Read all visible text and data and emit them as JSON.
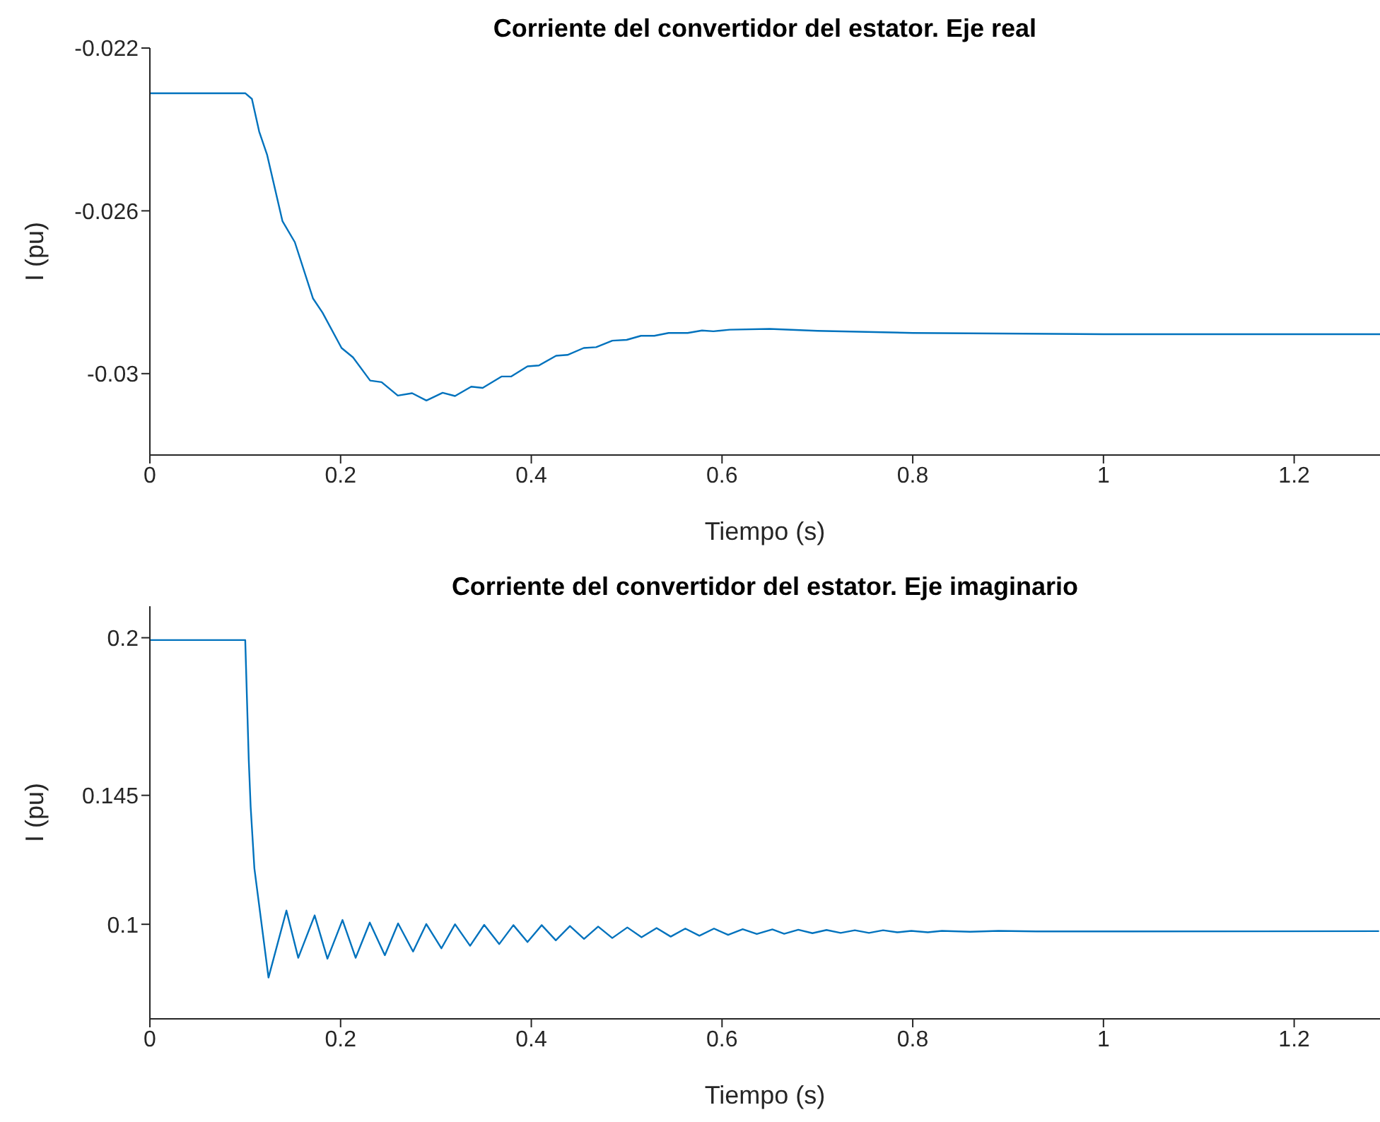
{
  "chart_data": [
    {
      "type": "line",
      "title": "Corriente del convertidor del estator. Eje real",
      "xlabel": "Tiempo (s)",
      "ylabel": "I (pu)",
      "xlim": [
        0,
        1.29
      ],
      "xticks": [
        0,
        0.2,
        0.4,
        0.6,
        0.8,
        1,
        1.2
      ],
      "ylim": [
        -0.032,
        -0.022
      ],
      "yticks": [
        -0.022,
        -0.026,
        -0.03
      ],
      "marker": "none",
      "line_style": "solid",
      "x": [
        0,
        0.1,
        0.107,
        0.1146,
        0.123,
        0.139,
        0.152,
        0.171,
        0.181,
        0.201,
        0.213,
        0.231,
        0.243,
        0.26,
        0.275,
        0.29,
        0.307,
        0.32,
        0.337,
        0.349,
        0.369,
        0.379,
        0.396,
        0.408,
        0.426,
        0.438,
        0.455,
        0.468,
        0.485,
        0.5,
        0.515,
        0.529,
        0.544,
        0.564,
        0.579,
        0.591,
        0.608,
        0.65,
        0.7,
        0.8,
        1.0,
        1.29
      ],
      "series": [
        {
          "color": "#0072bd",
          "values": [
            -0.02311,
            -0.02311,
            -0.02325,
            -0.02405,
            -0.02463,
            -0.02625,
            -0.02677,
            -0.02815,
            -0.0285,
            -0.02937,
            -0.0296,
            -0.03017,
            -0.03021,
            -0.03054,
            -0.03048,
            -0.03066,
            -0.03047,
            -0.03055,
            -0.03032,
            -0.03035,
            -0.03007,
            -0.03007,
            -0.02982,
            -0.0298,
            -0.02956,
            -0.02954,
            -0.02937,
            -0.02935,
            -0.02919,
            -0.02917,
            -0.02907,
            -0.02907,
            -0.029,
            -0.029,
            -0.02894,
            -0.02896,
            -0.02892,
            -0.0289,
            -0.02895,
            -0.029,
            -0.02903,
            -0.02903
          ]
        }
      ]
    },
    {
      "type": "line",
      "title": "Corriente del convertidor del estator. Eje imaginario",
      "xlabel": "Tiempo (s)",
      "ylabel": "I (pu)",
      "xlim": [
        0,
        1.29
      ],
      "xticks": [
        0,
        0.2,
        0.4,
        0.6,
        0.8,
        1,
        1.2
      ],
      "ylim": [
        0.067,
        0.211
      ],
      "yticks": [
        0.1,
        0.145,
        0.2
      ],
      "marker": "none",
      "line_style": "solid",
      "x": [
        0,
        0.1,
        0.1037,
        0.1057,
        0.1096,
        0.1244,
        0.1432,
        0.1556,
        0.1728,
        0.1862,
        0.202,
        0.2158,
        0.2306,
        0.2464,
        0.2603,
        0.276,
        0.2899,
        0.3057,
        0.32,
        0.3358,
        0.3506,
        0.3664,
        0.3812,
        0.396,
        0.4109,
        0.4257,
        0.4405,
        0.4553,
        0.4701,
        0.4849,
        0.5007,
        0.5156,
        0.5314,
        0.5462,
        0.5615,
        0.5763,
        0.5916,
        0.6064,
        0.6217,
        0.6365,
        0.6528,
        0.6652,
        0.68,
        0.6948,
        0.7096,
        0.7244,
        0.7393,
        0.7541,
        0.7689,
        0.7837,
        0.7985,
        0.8158,
        0.8306,
        0.8602,
        0.8898,
        0.93,
        1.03,
        1.289
      ],
      "series": [
        {
          "color": "#0072bd",
          "values": [
            0.1992,
            0.1992,
            0.1573,
            0.1409,
            0.1195,
            0.0814,
            0.1048,
            0.0883,
            0.1031,
            0.088,
            0.1015,
            0.0883,
            0.1006,
            0.0892,
            0.1003,
            0.0905,
            0.1001,
            0.0916,
            0.1,
            0.0925,
            0.0998,
            0.0931,
            0.0997,
            0.0938,
            0.0997,
            0.0944,
            0.0994,
            0.0949,
            0.0992,
            0.0952,
            0.0989,
            0.0955,
            0.0987,
            0.0957,
            0.0985,
            0.096,
            0.0985,
            0.0963,
            0.0983,
            0.0966,
            0.0982,
            0.0967,
            0.0981,
            0.0969,
            0.098,
            0.097,
            0.0979,
            0.097,
            0.0979,
            0.0972,
            0.0977,
            0.0972,
            0.0977,
            0.0974,
            0.0977,
            0.0975,
            0.0975,
            0.0976
          ]
        }
      ]
    }
  ]
}
